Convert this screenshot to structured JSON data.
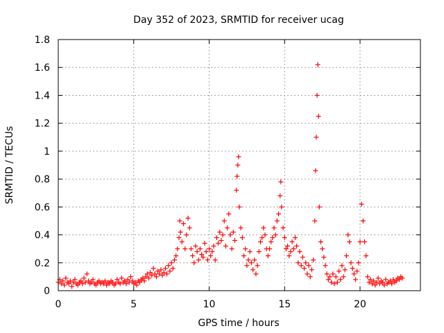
{
  "chart_data": {
    "type": "scatter",
    "title": "Day 352 of 2023, SRMTID for receiver ucag",
    "xlabel": "GPS time / hours",
    "ylabel": "SRMTID / TECUs",
    "xlim": [
      0,
      24
    ],
    "ylim": [
      0,
      1.8
    ],
    "xticks": [
      0,
      5,
      10,
      15,
      20
    ],
    "xtick_labels": [
      "0",
      "5",
      "10",
      "15",
      "20"
    ],
    "yticks": [
      0,
      0.2,
      0.4,
      0.6,
      0.8,
      1,
      1.2,
      1.4,
      1.6,
      1.8
    ],
    "ytick_labels": [
      "0",
      "0.2",
      "0.4",
      "0.6",
      "0.8",
      "1",
      "1.2",
      "1.4",
      "1.6",
      "1.8"
    ],
    "grid": true,
    "marker": "+",
    "series": [
      {
        "name": "SRMTID",
        "color": "#ff0000",
        "points": [
          [
            0.0,
            0.06
          ],
          [
            0.1,
            0.08
          ],
          [
            0.2,
            0.05
          ],
          [
            0.3,
            0.07
          ],
          [
            0.4,
            0.04
          ],
          [
            0.5,
            0.09
          ],
          [
            0.6,
            0.06
          ],
          [
            0.7,
            0.05
          ],
          [
            0.8,
            0.07
          ],
          [
            0.9,
            0.03
          ],
          [
            1.0,
            0.06
          ],
          [
            1.1,
            0.08
          ],
          [
            1.2,
            0.05
          ],
          [
            1.3,
            0.04
          ],
          [
            1.4,
            0.06
          ],
          [
            1.5,
            0.07
          ],
          [
            1.6,
            0.05
          ],
          [
            1.7,
            0.09
          ],
          [
            1.8,
            0.06
          ],
          [
            1.9,
            0.12
          ],
          [
            2.0,
            0.07
          ],
          [
            2.1,
            0.05
          ],
          [
            2.2,
            0.06
          ],
          [
            2.3,
            0.08
          ],
          [
            2.4,
            0.05
          ],
          [
            2.5,
            0.04
          ],
          [
            2.6,
            0.06
          ],
          [
            2.7,
            0.07
          ],
          [
            2.8,
            0.05
          ],
          [
            2.9,
            0.06
          ],
          [
            3.0,
            0.05
          ],
          [
            3.1,
            0.07
          ],
          [
            3.2,
            0.04
          ],
          [
            3.3,
            0.06
          ],
          [
            3.4,
            0.05
          ],
          [
            3.5,
            0.07
          ],
          [
            3.6,
            0.06
          ],
          [
            3.7,
            0.04
          ],
          [
            3.8,
            0.05
          ],
          [
            3.9,
            0.08
          ],
          [
            4.0,
            0.06
          ],
          [
            4.1,
            0.05
          ],
          [
            4.2,
            0.09
          ],
          [
            4.3,
            0.06
          ],
          [
            4.4,
            0.07
          ],
          [
            4.5,
            0.05
          ],
          [
            4.6,
            0.08
          ],
          [
            4.7,
            0.06
          ],
          [
            4.8,
            0.1
          ],
          [
            4.9,
            0.07
          ],
          [
            5.0,
            0.05
          ],
          [
            5.1,
            0.06
          ],
          [
            5.2,
            0.04
          ],
          [
            5.3,
            0.07
          ],
          [
            5.4,
            0.06
          ],
          [
            5.5,
            0.08
          ],
          [
            5.6,
            0.09
          ],
          [
            5.7,
            0.07
          ],
          [
            5.8,
            0.1
          ],
          [
            5.9,
            0.12
          ],
          [
            6.0,
            0.09
          ],
          [
            6.1,
            0.13
          ],
          [
            6.2,
            0.11
          ],
          [
            6.3,
            0.16
          ],
          [
            6.4,
            0.12
          ],
          [
            6.5,
            0.1
          ],
          [
            6.6,
            0.14
          ],
          [
            6.7,
            0.12
          ],
          [
            6.8,
            0.15
          ],
          [
            6.9,
            0.11
          ],
          [
            7.0,
            0.13
          ],
          [
            7.1,
            0.16
          ],
          [
            7.2,
            0.12
          ],
          [
            7.3,
            0.18
          ],
          [
            7.4,
            0.14
          ],
          [
            7.5,
            0.2
          ],
          [
            7.6,
            0.16
          ],
          [
            7.7,
            0.22
          ],
          [
            7.8,
            0.25
          ],
          [
            7.9,
            0.3
          ],
          [
            8.0,
            0.38
          ],
          [
            8.05,
            0.5
          ],
          [
            8.1,
            0.42
          ],
          [
            8.2,
            0.35
          ],
          [
            8.3,
            0.48
          ],
          [
            8.4,
            0.3
          ],
          [
            8.5,
            0.4
          ],
          [
            8.6,
            0.52
          ],
          [
            8.7,
            0.45
          ],
          [
            8.8,
            0.3
          ],
          [
            8.9,
            0.25
          ],
          [
            9.0,
            0.2
          ],
          [
            9.1,
            0.32
          ],
          [
            9.2,
            0.28
          ],
          [
            9.3,
            0.22
          ],
          [
            9.4,
            0.3
          ],
          [
            9.5,
            0.26
          ],
          [
            9.6,
            0.24
          ],
          [
            9.7,
            0.34
          ],
          [
            9.8,
            0.28
          ],
          [
            9.9,
            0.22
          ],
          [
            10.0,
            0.3
          ],
          [
            10.1,
            0.25
          ],
          [
            10.2,
            0.28
          ],
          [
            10.3,
            0.32
          ],
          [
            10.4,
            0.22
          ],
          [
            10.5,
            0.38
          ],
          [
            10.6,
            0.34
          ],
          [
            10.7,
            0.42
          ],
          [
            10.8,
            0.36
          ],
          [
            10.9,
            0.4
          ],
          [
            11.0,
            0.5
          ],
          [
            11.1,
            0.32
          ],
          [
            11.2,
            0.45
          ],
          [
            11.3,
            0.55
          ],
          [
            11.4,
            0.4
          ],
          [
            11.5,
            0.3
          ],
          [
            11.6,
            0.42
          ],
          [
            11.7,
            0.36
          ],
          [
            11.8,
            0.72
          ],
          [
            11.85,
            0.82
          ],
          [
            11.9,
            0.9
          ],
          [
            11.95,
            0.96
          ],
          [
            12.0,
            0.6
          ],
          [
            12.1,
            0.45
          ],
          [
            12.2,
            0.38
          ],
          [
            12.3,
            0.25
          ],
          [
            12.4,
            0.3
          ],
          [
            12.5,
            0.18
          ],
          [
            12.6,
            0.22
          ],
          [
            12.7,
            0.28
          ],
          [
            12.8,
            0.2
          ],
          [
            12.9,
            0.15
          ],
          [
            13.0,
            0.22
          ],
          [
            13.1,
            0.12
          ],
          [
            13.2,
            0.18
          ],
          [
            13.3,
            0.28
          ],
          [
            13.4,
            0.35
          ],
          [
            13.5,
            0.38
          ],
          [
            13.6,
            0.45
          ],
          [
            13.7,
            0.4
          ],
          [
            13.8,
            0.3
          ],
          [
            13.9,
            0.25
          ],
          [
            14.0,
            0.3
          ],
          [
            14.1,
            0.35
          ],
          [
            14.2,
            0.38
          ],
          [
            14.3,
            0.45
          ],
          [
            14.4,
            0.4
          ],
          [
            14.5,
            0.5
          ],
          [
            14.6,
            0.55
          ],
          [
            14.7,
            0.68
          ],
          [
            14.75,
            0.78
          ],
          [
            14.8,
            0.6
          ],
          [
            14.9,
            0.45
          ],
          [
            15.0,
            0.38
          ],
          [
            15.1,
            0.3
          ],
          [
            15.2,
            0.32
          ],
          [
            15.3,
            0.25
          ],
          [
            15.4,
            0.28
          ],
          [
            15.5,
            0.35
          ],
          [
            15.6,
            0.3
          ],
          [
            15.7,
            0.38
          ],
          [
            15.8,
            0.32
          ],
          [
            15.9,
            0.2
          ],
          [
            16.0,
            0.28
          ],
          [
            16.1,
            0.18
          ],
          [
            16.2,
            0.24
          ],
          [
            16.3,
            0.16
          ],
          [
            16.4,
            0.2
          ],
          [
            16.5,
            0.12
          ],
          [
            16.6,
            0.18
          ],
          [
            16.7,
            0.1
          ],
          [
            16.8,
            0.15
          ],
          [
            16.9,
            0.22
          ],
          [
            17.0,
            0.5
          ],
          [
            17.05,
            0.86
          ],
          [
            17.1,
            1.1
          ],
          [
            17.15,
            1.4
          ],
          [
            17.2,
            1.62
          ],
          [
            17.25,
            1.25
          ],
          [
            17.3,
            0.6
          ],
          [
            17.4,
            0.35
          ],
          [
            17.5,
            0.3
          ],
          [
            17.6,
            0.24
          ],
          [
            17.7,
            0.18
          ],
          [
            17.8,
            0.12
          ],
          [
            17.9,
            0.08
          ],
          [
            18.0,
            0.1
          ],
          [
            18.1,
            0.06
          ],
          [
            18.2,
            0.12
          ],
          [
            18.3,
            0.05
          ],
          [
            18.4,
            0.1
          ],
          [
            18.5,
            0.06
          ],
          [
            18.6,
            0.14
          ],
          [
            18.7,
            0.08
          ],
          [
            18.8,
            0.18
          ],
          [
            18.9,
            0.1
          ],
          [
            19.0,
            0.15
          ],
          [
            19.1,
            0.25
          ],
          [
            19.2,
            0.4
          ],
          [
            19.3,
            0.35
          ],
          [
            19.4,
            0.2
          ],
          [
            19.5,
            0.16
          ],
          [
            19.6,
            0.12
          ],
          [
            19.7,
            0.08
          ],
          [
            19.8,
            0.14
          ],
          [
            19.9,
            0.2
          ],
          [
            20.0,
            0.35
          ],
          [
            20.1,
            0.62
          ],
          [
            20.2,
            0.5
          ],
          [
            20.3,
            0.35
          ],
          [
            20.4,
            0.25
          ],
          [
            20.5,
            0.1
          ],
          [
            20.6,
            0.06
          ],
          [
            20.7,
            0.08
          ],
          [
            20.8,
            0.05
          ],
          [
            20.9,
            0.07
          ],
          [
            21.0,
            0.04
          ],
          [
            21.1,
            0.06
          ],
          [
            21.2,
            0.09
          ],
          [
            21.3,
            0.05
          ],
          [
            21.4,
            0.07
          ],
          [
            21.5,
            0.06
          ],
          [
            21.6,
            0.04
          ],
          [
            21.7,
            0.08
          ],
          [
            21.8,
            0.05
          ],
          [
            21.9,
            0.06
          ],
          [
            22.0,
            0.07
          ],
          [
            22.1,
            0.05
          ],
          [
            22.2,
            0.08
          ],
          [
            22.3,
            0.06
          ],
          [
            22.4,
            0.07
          ],
          [
            22.5,
            0.09
          ],
          [
            22.6,
            0.08
          ],
          [
            22.7,
            0.1
          ],
          [
            22.8,
            0.09
          ]
        ]
      }
    ]
  }
}
